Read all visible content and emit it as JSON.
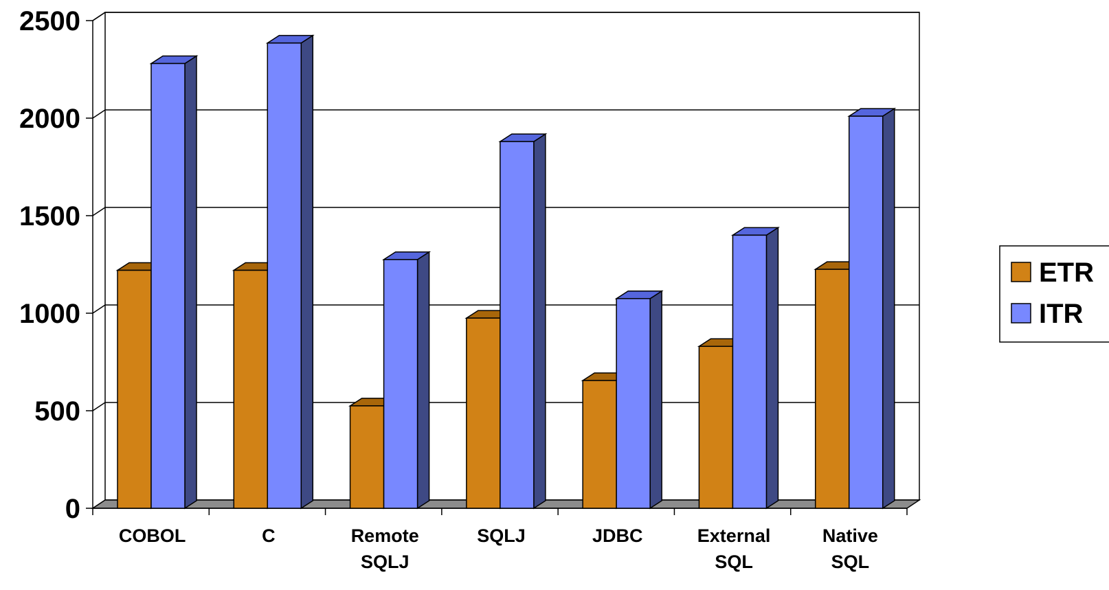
{
  "chart_data": {
    "type": "bar",
    "title": "",
    "xlabel": "",
    "ylabel": "",
    "ylim": [
      0,
      2500
    ],
    "yticks": [
      0,
      500,
      1000,
      1500,
      2000,
      2500
    ],
    "categories": [
      [
        "COBOL"
      ],
      [
        "C"
      ],
      [
        "Remote",
        "SQLJ"
      ],
      [
        "SQLJ"
      ],
      [
        "JDBC"
      ],
      [
        "External",
        "SQL"
      ],
      [
        "Native",
        "SQL"
      ]
    ],
    "series": [
      {
        "name": "ETR",
        "values": [
          1220,
          1220,
          525,
          975,
          655,
          830,
          1225
        ]
      },
      {
        "name": "ITR",
        "values": [
          2280,
          2385,
          1275,
          1880,
          1075,
          1400,
          2010
        ]
      }
    ],
    "grid": true,
    "legend": "right",
    "style": "3d-clustered-column"
  },
  "colors": {
    "ETR": {
      "front": "#D18216",
      "top": "#A8660A",
      "side": "#7A4A06"
    },
    "ITR": {
      "front": "#7888FF",
      "top": "#5566DD",
      "side": "#3E4984"
    },
    "floor": "#8C8C8C",
    "grid": "#000000"
  }
}
